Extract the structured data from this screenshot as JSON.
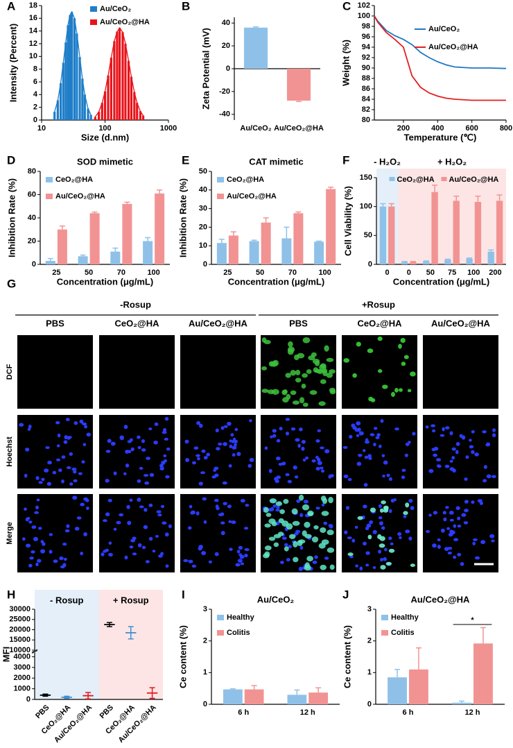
{
  "chart_data": [
    {
      "label": "A",
      "type": "bar",
      "xscale": "log",
      "xlim": [
        10,
        1000
      ],
      "xticks": [
        10,
        100,
        1000
      ],
      "ylim": [
        0,
        18
      ],
      "yticks": [
        0,
        2,
        4,
        6,
        8,
        10,
        12,
        14,
        16,
        18
      ],
      "xlabel": "Size (d.nm)",
      "ylabel": "Intensity (Percent)",
      "legend": "upper right",
      "series": [
        {
          "name": "Au/CeO₂",
          "color": "#1f7ec8",
          "x": [
            16,
            18,
            20,
            22,
            24,
            26,
            28,
            30,
            33,
            36,
            40,
            44,
            48,
            54,
            60
          ],
          "values": [
            1.3,
            3.1,
            5.8,
            9.0,
            12.2,
            14.9,
            16.5,
            17.0,
            16.0,
            13.6,
            9.9,
            6.5,
            4.0,
            1.8,
            0.8
          ]
        },
        {
          "name": "Au/CeO₂@HA",
          "color": "#e8141b",
          "x": [
            70,
            80,
            90,
            100,
            112,
            125,
            140,
            155,
            170,
            190,
            210,
            235,
            260,
            290,
            320,
            360,
            400
          ],
          "values": [
            0.5,
            1.3,
            2.7,
            4.5,
            7.0,
            9.8,
            12.4,
            13.9,
            14.5,
            13.8,
            12.0,
            9.3,
            6.8,
            4.4,
            2.7,
            1.4,
            0.7
          ]
        }
      ]
    },
    {
      "label": "B",
      "type": "bar",
      "categories": [
        "Au/CeO₂",
        "Au/CeO₂@HA"
      ],
      "values": [
        36,
        -28
      ],
      "errors": [
        0.6,
        0.8
      ],
      "colors": [
        "#8fc1e8",
        "#f29393"
      ],
      "ylim": [
        -45,
        45
      ],
      "yticks": [
        -40,
        -20,
        0,
        20,
        40
      ],
      "ylabel": "Zeta Potential (mV)"
    },
    {
      "label": "C",
      "type": "line",
      "x": [
        30,
        50,
        100,
        150,
        200,
        250,
        300,
        350,
        400,
        450,
        500,
        600,
        700,
        800
      ],
      "xlim": [
        30,
        800
      ],
      "xticks": [
        200,
        400,
        600,
        800
      ],
      "ylim": [
        80,
        102
      ],
      "yticks": [
        80,
        82,
        84,
        86,
        88,
        90,
        92,
        94,
        96,
        98,
        100,
        102
      ],
      "xlabel": "Temperature (℃)",
      "ylabel": "Weight (%)",
      "legend": "upper right",
      "series": [
        {
          "name": "Au/CeO₂",
          "color": "#1f77c2",
          "values": [
            100,
            99,
            97.2,
            96.2,
            95.5,
            94.5,
            93,
            92,
            91.2,
            90.6,
            90.2,
            90,
            90,
            89.9
          ]
        },
        {
          "name": "Au/CeO₂@HA",
          "color": "#e41e1e",
          "values": [
            100,
            98.8,
            96.8,
            95.5,
            94,
            88.5,
            86.3,
            85.2,
            84.6,
            84.2,
            84,
            83.8,
            83.8,
            83.8
          ]
        }
      ]
    },
    {
      "label": "D",
      "type": "bar",
      "title": "SOD mimetic",
      "categories": [
        "25",
        "50",
        "70",
        "100"
      ],
      "ylim": [
        0,
        80
      ],
      "yticks": [
        0,
        20,
        40,
        60,
        80
      ],
      "xlabel": "Concentration (μg/mL)",
      "ylabel": "Inhibition Rate (%)",
      "legend": "upper left",
      "series": [
        {
          "name": "CeO₂@HA",
          "color": "#8fc1e8",
          "values": [
            3,
            7,
            11,
            20
          ],
          "errors": [
            2,
            1,
            3,
            3
          ]
        },
        {
          "name": "Au/CeO₂@HA",
          "color": "#f29393",
          "values": [
            30,
            44,
            52,
            61
          ],
          "errors": [
            3,
            1,
            1.5,
            3
          ]
        }
      ]
    },
    {
      "label": "E",
      "type": "bar",
      "title": "CAT mimetic",
      "categories": [
        "25",
        "50",
        "70",
        "100"
      ],
      "ylim": [
        0,
        50
      ],
      "yticks": [
        0,
        10,
        20,
        30,
        40,
        50
      ],
      "xlabel": "Concentration (μg/mL)",
      "ylabel": "Inhibition Rate (%)",
      "legend": "upper left",
      "series": [
        {
          "name": "CeO₂@HA",
          "color": "#8fc1e8",
          "values": [
            11.5,
            12.5,
            14,
            12.2
          ],
          "errors": [
            2,
            0.5,
            6,
            0.3
          ]
        },
        {
          "name": "Au/CeO₂@HA",
          "color": "#f29393",
          "values": [
            15.5,
            22.5,
            27.5,
            40.5
          ],
          "errors": [
            2,
            2.5,
            0.7,
            1
          ]
        }
      ]
    },
    {
      "label": "F",
      "type": "bar",
      "categories": [
        "0",
        "0",
        "50",
        "75",
        "100",
        "200"
      ],
      "ylim": [
        0,
        150
      ],
      "yticks": [
        0,
        50,
        100,
        150
      ],
      "xlabel": "Concentration (μg/mL)",
      "ylabel": "Cell Viability (%)",
      "legend": "upper center",
      "regions": [
        {
          "label": "- H₂O₂",
          "span": 1,
          "color": "#e4eff9",
          "label_color": "#3a8fd4"
        },
        {
          "label": "+ H₂O₂",
          "span": 5,
          "color": "#fde5e5",
          "label_color": "#e8141b"
        }
      ],
      "series": [
        {
          "name": "CeO₂@HA",
          "color": "#8fc1e8",
          "values": [
            100,
            4,
            5,
            8,
            10,
            22
          ],
          "errors": [
            5,
            1,
            1,
            1,
            1,
            3
          ]
        },
        {
          "name": "Au/CeO₂@HA",
          "color": "#f29393",
          "values": [
            100,
            4,
            125,
            110,
            108,
            110
          ],
          "errors": [
            5,
            1,
            12,
            8,
            10,
            10
          ]
        }
      ]
    },
    {
      "label": "H",
      "type": "dot",
      "categories": [
        "PBS",
        "CeO₂@HA",
        "Au/CeO₂@HA",
        "PBS",
        "CeO₂@HA",
        "Au/CeO₂@HA"
      ],
      "values": [
        400,
        200,
        350,
        22500,
        18500,
        600
      ],
      "errors": [
        100,
        100,
        300,
        1000,
        3000,
        500
      ],
      "colors": [
        "#000000",
        "#3a8fd4",
        "#e8141b",
        "#000000",
        "#3a8fd4",
        "#e8141b"
      ],
      "ylim": [
        0,
        30000
      ],
      "ybreak": [
        4400,
        10000
      ],
      "yticks": [
        0,
        1000,
        2000,
        3000,
        4000,
        10000,
        15000,
        20000,
        25000,
        30000
      ],
      "ylabel": "MFI",
      "regions": [
        {
          "label": "- Rosup",
          "span": 3,
          "color": "#e4eff9",
          "label_color": "#3a8fd4"
        },
        {
          "label": "+ Rosup",
          "span": 3,
          "color": "#fde5e5",
          "label_color": "#e8141b"
        }
      ]
    },
    {
      "label": "I",
      "type": "bar",
      "title": "Au/CeO₂",
      "categories": [
        "6 h",
        "12 h"
      ],
      "ylim": [
        0,
        3
      ],
      "yticks": [
        0,
        1,
        2,
        3
      ],
      "ylabel": "Ce content (%)",
      "legend": "upper left",
      "series": [
        {
          "name": "Healthy",
          "color": "#8fc1e8",
          "values": [
            0.47,
            0.3
          ],
          "errors": [
            0.02,
            0.15
          ]
        },
        {
          "name": "Colitis",
          "color": "#f29393",
          "values": [
            0.47,
            0.37
          ],
          "errors": [
            0.12,
            0.15
          ]
        }
      ]
    },
    {
      "label": "J",
      "type": "bar",
      "title": "Au/CeO₂@HA",
      "categories": [
        "6 h",
        "12 h"
      ],
      "ylim": [
        0,
        3
      ],
      "yticks": [
        0,
        1,
        2,
        3
      ],
      "ylabel": "Ce content (%)",
      "legend": "upper left",
      "annotations": [
        {
          "text": "*"
        }
      ],
      "series": [
        {
          "name": "Healthy",
          "color": "#8fc1e8",
          "values": [
            0.85,
            0.05
          ],
          "errors": [
            0.25,
            0.05
          ]
        },
        {
          "name": "Colitis",
          "color": "#f29393",
          "values": [
            1.1,
            1.92
          ],
          "errors": [
            0.68,
            0.5
          ]
        }
      ]
    }
  ],
  "image_panel": {
    "label": "G",
    "groups": [
      "-Rosup",
      "+Rosup"
    ],
    "columns": [
      "PBS",
      "CeO₂@HA",
      "Au/CeO₂@HA",
      "PBS",
      "CeO₂@HA",
      "Au/CeO₂@HA"
    ],
    "rows": [
      "DCF",
      "Hoechst",
      "Merge"
    ]
  }
}
